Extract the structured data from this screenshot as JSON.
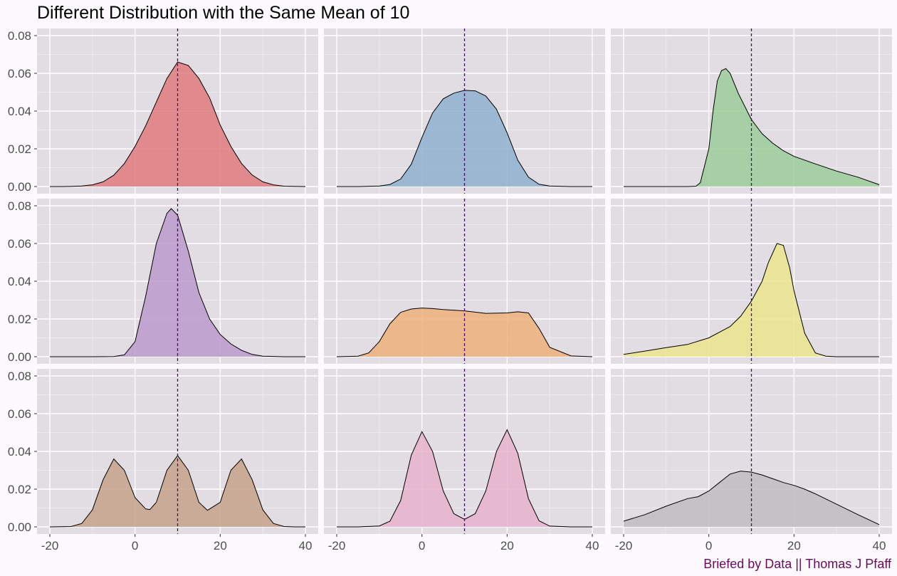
{
  "chart_data": {
    "type": "area",
    "layout": "facet-grid-3x3",
    "title": "Different Distribution with the Same Mean of 10",
    "caption": "Briefed by Data || Thomas J Pfaff",
    "xlabel": "",
    "ylabel": "",
    "xlim": [
      -20,
      40
    ],
    "ylim": [
      0,
      0.08
    ],
    "x_ticks": [
      -20,
      0,
      20,
      40
    ],
    "y_ticks": [
      0.0,
      0.02,
      0.04,
      0.06,
      0.08
    ],
    "y_tick_labels": [
      "0.00",
      "0.02",
      "0.04",
      "0.06",
      "0.08"
    ],
    "x_tick_labels": [
      "-20",
      "0",
      "20",
      "40"
    ],
    "mean_line": 10,
    "mean_line_color": "#4b0a6e",
    "panel_background": "#e1dde2",
    "grid": true,
    "series": [
      {
        "x": [
          -20,
          -17.5,
          -15,
          -12.5,
          -10,
          -7.5,
          -5,
          -2.5,
          0,
          2.5,
          5,
          7.5,
          10,
          12.5,
          15,
          17.5,
          20,
          22.5,
          25,
          27.5,
          30,
          32.5,
          35,
          37.5,
          40
        ],
        "y": [
          0,
          0.0,
          0.0001,
          0.0003,
          0.0009,
          0.0025,
          0.006,
          0.0122,
          0.0213,
          0.0322,
          0.0448,
          0.0573,
          0.066,
          0.0642,
          0.0573,
          0.047,
          0.0326,
          0.0213,
          0.0122,
          0.0061,
          0.0025,
          0.0009,
          0.0002,
          0.0001,
          0
        ],
        "color": "#e07b7f"
      },
      {
        "x": [
          -20,
          -15,
          -10,
          -7.5,
          -5,
          -2.5,
          0,
          2.5,
          5,
          7.5,
          10,
          12.5,
          15,
          17.5,
          20,
          22.5,
          25,
          27.5,
          30,
          35,
          40
        ],
        "y": [
          0,
          0,
          0.0003,
          0.0011,
          0.004,
          0.0118,
          0.026,
          0.039,
          0.0465,
          0.0495,
          0.051,
          0.0507,
          0.048,
          0.041,
          0.0285,
          0.014,
          0.005,
          0.0012,
          0.0003,
          0,
          0
        ],
        "color": "#8fb0cf"
      },
      {
        "x": [
          -20,
          -10,
          -5,
          -3,
          -2,
          0,
          1,
          2,
          3,
          4,
          5,
          7,
          10,
          12.5,
          15,
          17.5,
          20,
          25,
          30,
          35,
          40
        ],
        "y": [
          0,
          0,
          0,
          0.0002,
          0.002,
          0.02,
          0.04,
          0.056,
          0.0615,
          0.0625,
          0.06,
          0.049,
          0.0355,
          0.028,
          0.023,
          0.019,
          0.016,
          0.012,
          0.0082,
          0.005,
          0.001
        ],
        "color": "#9ccc9a"
      },
      {
        "x": [
          -20,
          -15,
          -10,
          -5,
          -2.5,
          0,
          2.5,
          5,
          7.5,
          8.5,
          10,
          12.5,
          15,
          17.5,
          20,
          22.5,
          25,
          27.5,
          30,
          35,
          40
        ],
        "y": [
          0,
          0,
          0,
          0.0001,
          0.001,
          0.008,
          0.032,
          0.06,
          0.076,
          0.0785,
          0.075,
          0.056,
          0.034,
          0.02,
          0.0118,
          0.0068,
          0.0034,
          0.0012,
          0.0003,
          0,
          0
        ],
        "color": "#bb9acb"
      },
      {
        "x": [
          -20,
          -15,
          -12.5,
          -10,
          -7.5,
          -5,
          -2.5,
          0,
          2.5,
          5,
          10,
          15,
          20,
          22.5,
          25,
          27.5,
          30,
          35,
          40
        ],
        "y": [
          0,
          0.0003,
          0.002,
          0.008,
          0.0175,
          0.0235,
          0.0253,
          0.0258,
          0.0255,
          0.025,
          0.0243,
          0.023,
          0.0232,
          0.0238,
          0.0232,
          0.015,
          0.005,
          0.0004,
          0
        ],
        "color": "#efb07d"
      },
      {
        "x": [
          -20,
          -15,
          -10,
          -5,
          0,
          5,
          7.5,
          10,
          12.5,
          14,
          16,
          17.5,
          19,
          20,
          22.5,
          25,
          27.5,
          30,
          35,
          40
        ],
        "y": [
          0.0012,
          0.003,
          0.0048,
          0.0065,
          0.01,
          0.016,
          0.0215,
          0.0295,
          0.04,
          0.05,
          0.06,
          0.059,
          0.047,
          0.035,
          0.0125,
          0.002,
          0.0003,
          0,
          0,
          0
        ],
        "color": "#ebe58e"
      },
      {
        "x": [
          -20,
          -15,
          -12.5,
          -10,
          -7.5,
          -5,
          -2.5,
          0,
          2.5,
          3.5,
          5,
          7.5,
          10,
          12.5,
          15,
          17,
          20,
          22.5,
          25,
          27.5,
          30,
          32.5,
          35,
          37.5,
          40
        ],
        "y": [
          0,
          0.0002,
          0.0018,
          0.009,
          0.025,
          0.036,
          0.03,
          0.0155,
          0.0095,
          0.0092,
          0.013,
          0.03,
          0.0378,
          0.03,
          0.013,
          0.0088,
          0.013,
          0.03,
          0.036,
          0.025,
          0.009,
          0.0018,
          0.0002,
          0,
          0
        ],
        "color": "#c4a28a"
      },
      {
        "x": [
          -20,
          -15,
          -10,
          -7.5,
          -5,
          -2.5,
          0,
          2.5,
          5,
          7.5,
          10,
          12.5,
          15,
          17.5,
          20,
          22.5,
          25,
          27.5,
          30,
          35,
          40
        ],
        "y": [
          0,
          0,
          0.0005,
          0.003,
          0.014,
          0.038,
          0.0505,
          0.04,
          0.019,
          0.007,
          0.004,
          0.007,
          0.019,
          0.04,
          0.0515,
          0.039,
          0.015,
          0.0032,
          0.0004,
          0,
          0
        ],
        "color": "#e8b3cd"
      },
      {
        "x": [
          -20,
          -15,
          -10,
          -5,
          -2.5,
          0,
          2.5,
          5,
          7.5,
          10,
          12.5,
          15,
          17.5,
          20,
          22.5,
          25,
          30,
          35,
          40
        ],
        "y": [
          0.003,
          0.0065,
          0.011,
          0.015,
          0.016,
          0.019,
          0.0235,
          0.028,
          0.0296,
          0.029,
          0.0275,
          0.0255,
          0.0235,
          0.022,
          0.02,
          0.0175,
          0.012,
          0.0065,
          0.0012
        ],
        "color": "#bfbcbf"
      }
    ]
  }
}
